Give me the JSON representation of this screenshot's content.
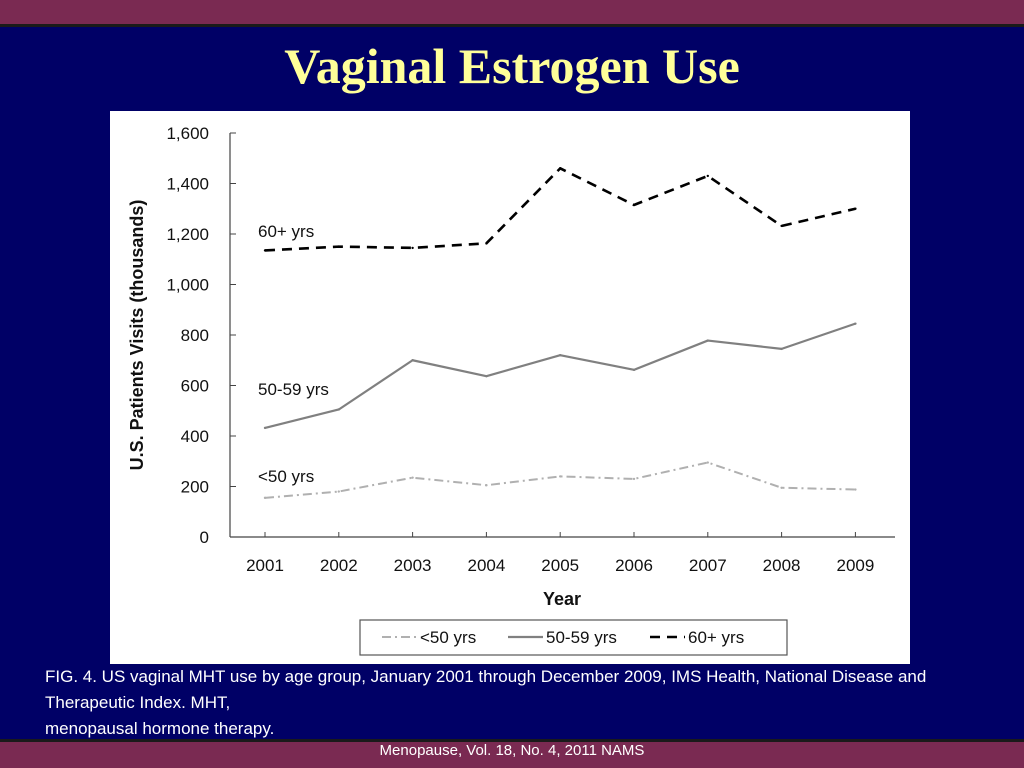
{
  "slide": {
    "title": "Vaginal Estrogen Use",
    "caption_line1": "FIG. 4. US vaginal MHT use by age group, January 2001 through December 2009, IMS Health, National Disease and Therapeutic Index. MHT,",
    "caption_line2": "menopausal hormone therapy.",
    "footer": "Menopause, Vol. 18, No. 4, 2011 NAMS",
    "colors": {
      "background": "#000066",
      "accent_bar": "#7a2a52",
      "title": "#ffff99",
      "series_lt50": "#b0b0b0",
      "series_50_59": "#808080",
      "series_60plus": "#000000"
    }
  },
  "chart_data": {
    "type": "line",
    "title": "",
    "xlabel": "Year",
    "ylabel": "U.S. Patients Visits (thousands)",
    "x": [
      "2001",
      "2002",
      "2003",
      "2004",
      "2005",
      "2006",
      "2007",
      "2008",
      "2009"
    ],
    "ylim": [
      0,
      1600
    ],
    "yticks": [
      "0",
      "200",
      "400",
      "600",
      "800",
      "1,000",
      "1,200",
      "1,400",
      "1,600"
    ],
    "grid": false,
    "legend_position": "bottom",
    "series": [
      {
        "name": "<50 yrs",
        "style": "dash-dot",
        "values": [
          155,
          180,
          235,
          205,
          240,
          230,
          295,
          195,
          188
        ]
      },
      {
        "name": "50-59 yrs",
        "style": "solid",
        "values": [
          432,
          505,
          700,
          637,
          720,
          662,
          778,
          745,
          845
        ]
      },
      {
        "name": "60+ yrs",
        "style": "dashed",
        "values": [
          1135,
          1150,
          1145,
          1163,
          1460,
          1315,
          1430,
          1232,
          1300
        ]
      }
    ],
    "annotations": [
      "60+ yrs",
      "50-59 yrs",
      "<50 yrs"
    ]
  }
}
